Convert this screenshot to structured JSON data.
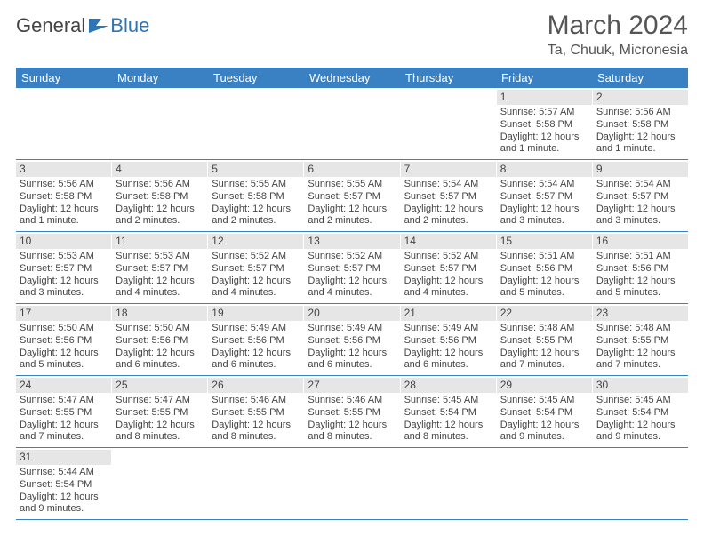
{
  "logo": {
    "text1": "General",
    "text2": "Blue"
  },
  "title": "March 2024",
  "location": "Ta, Chuuk, Micronesia",
  "colors": {
    "header_bg": "#3a81c4",
    "header_text": "#ffffff",
    "daynum_bg": "#e6e6e6",
    "row_border": "#3a81c4",
    "body_text": "#444444",
    "accent": "#2e75b6"
  },
  "daysOfWeek": [
    "Sunday",
    "Monday",
    "Tuesday",
    "Wednesday",
    "Thursday",
    "Friday",
    "Saturday"
  ],
  "weeks": [
    [
      {
        "n": "",
        "sr": "",
        "ss": "",
        "dl": ""
      },
      {
        "n": "",
        "sr": "",
        "ss": "",
        "dl": ""
      },
      {
        "n": "",
        "sr": "",
        "ss": "",
        "dl": ""
      },
      {
        "n": "",
        "sr": "",
        "ss": "",
        "dl": ""
      },
      {
        "n": "",
        "sr": "",
        "ss": "",
        "dl": ""
      },
      {
        "n": "1",
        "sr": "Sunrise: 5:57 AM",
        "ss": "Sunset: 5:58 PM",
        "dl": "Daylight: 12 hours and 1 minute."
      },
      {
        "n": "2",
        "sr": "Sunrise: 5:56 AM",
        "ss": "Sunset: 5:58 PM",
        "dl": "Daylight: 12 hours and 1 minute."
      }
    ],
    [
      {
        "n": "3",
        "sr": "Sunrise: 5:56 AM",
        "ss": "Sunset: 5:58 PM",
        "dl": "Daylight: 12 hours and 1 minute."
      },
      {
        "n": "4",
        "sr": "Sunrise: 5:56 AM",
        "ss": "Sunset: 5:58 PM",
        "dl": "Daylight: 12 hours and 2 minutes."
      },
      {
        "n": "5",
        "sr": "Sunrise: 5:55 AM",
        "ss": "Sunset: 5:58 PM",
        "dl": "Daylight: 12 hours and 2 minutes."
      },
      {
        "n": "6",
        "sr": "Sunrise: 5:55 AM",
        "ss": "Sunset: 5:57 PM",
        "dl": "Daylight: 12 hours and 2 minutes."
      },
      {
        "n": "7",
        "sr": "Sunrise: 5:54 AM",
        "ss": "Sunset: 5:57 PM",
        "dl": "Daylight: 12 hours and 2 minutes."
      },
      {
        "n": "8",
        "sr": "Sunrise: 5:54 AM",
        "ss": "Sunset: 5:57 PM",
        "dl": "Daylight: 12 hours and 3 minutes."
      },
      {
        "n": "9",
        "sr": "Sunrise: 5:54 AM",
        "ss": "Sunset: 5:57 PM",
        "dl": "Daylight: 12 hours and 3 minutes."
      }
    ],
    [
      {
        "n": "10",
        "sr": "Sunrise: 5:53 AM",
        "ss": "Sunset: 5:57 PM",
        "dl": "Daylight: 12 hours and 3 minutes."
      },
      {
        "n": "11",
        "sr": "Sunrise: 5:53 AM",
        "ss": "Sunset: 5:57 PM",
        "dl": "Daylight: 12 hours and 4 minutes."
      },
      {
        "n": "12",
        "sr": "Sunrise: 5:52 AM",
        "ss": "Sunset: 5:57 PM",
        "dl": "Daylight: 12 hours and 4 minutes."
      },
      {
        "n": "13",
        "sr": "Sunrise: 5:52 AM",
        "ss": "Sunset: 5:57 PM",
        "dl": "Daylight: 12 hours and 4 minutes."
      },
      {
        "n": "14",
        "sr": "Sunrise: 5:52 AM",
        "ss": "Sunset: 5:57 PM",
        "dl": "Daylight: 12 hours and 4 minutes."
      },
      {
        "n": "15",
        "sr": "Sunrise: 5:51 AM",
        "ss": "Sunset: 5:56 PM",
        "dl": "Daylight: 12 hours and 5 minutes."
      },
      {
        "n": "16",
        "sr": "Sunrise: 5:51 AM",
        "ss": "Sunset: 5:56 PM",
        "dl": "Daylight: 12 hours and 5 minutes."
      }
    ],
    [
      {
        "n": "17",
        "sr": "Sunrise: 5:50 AM",
        "ss": "Sunset: 5:56 PM",
        "dl": "Daylight: 12 hours and 5 minutes."
      },
      {
        "n": "18",
        "sr": "Sunrise: 5:50 AM",
        "ss": "Sunset: 5:56 PM",
        "dl": "Daylight: 12 hours and 6 minutes."
      },
      {
        "n": "19",
        "sr": "Sunrise: 5:49 AM",
        "ss": "Sunset: 5:56 PM",
        "dl": "Daylight: 12 hours and 6 minutes."
      },
      {
        "n": "20",
        "sr": "Sunrise: 5:49 AM",
        "ss": "Sunset: 5:56 PM",
        "dl": "Daylight: 12 hours and 6 minutes."
      },
      {
        "n": "21",
        "sr": "Sunrise: 5:49 AM",
        "ss": "Sunset: 5:56 PM",
        "dl": "Daylight: 12 hours and 6 minutes."
      },
      {
        "n": "22",
        "sr": "Sunrise: 5:48 AM",
        "ss": "Sunset: 5:55 PM",
        "dl": "Daylight: 12 hours and 7 minutes."
      },
      {
        "n": "23",
        "sr": "Sunrise: 5:48 AM",
        "ss": "Sunset: 5:55 PM",
        "dl": "Daylight: 12 hours and 7 minutes."
      }
    ],
    [
      {
        "n": "24",
        "sr": "Sunrise: 5:47 AM",
        "ss": "Sunset: 5:55 PM",
        "dl": "Daylight: 12 hours and 7 minutes."
      },
      {
        "n": "25",
        "sr": "Sunrise: 5:47 AM",
        "ss": "Sunset: 5:55 PM",
        "dl": "Daylight: 12 hours and 8 minutes."
      },
      {
        "n": "26",
        "sr": "Sunrise: 5:46 AM",
        "ss": "Sunset: 5:55 PM",
        "dl": "Daylight: 12 hours and 8 minutes."
      },
      {
        "n": "27",
        "sr": "Sunrise: 5:46 AM",
        "ss": "Sunset: 5:55 PM",
        "dl": "Daylight: 12 hours and 8 minutes."
      },
      {
        "n": "28",
        "sr": "Sunrise: 5:45 AM",
        "ss": "Sunset: 5:54 PM",
        "dl": "Daylight: 12 hours and 8 minutes."
      },
      {
        "n": "29",
        "sr": "Sunrise: 5:45 AM",
        "ss": "Sunset: 5:54 PM",
        "dl": "Daylight: 12 hours and 9 minutes."
      },
      {
        "n": "30",
        "sr": "Sunrise: 5:45 AM",
        "ss": "Sunset: 5:54 PM",
        "dl": "Daylight: 12 hours and 9 minutes."
      }
    ],
    [
      {
        "n": "31",
        "sr": "Sunrise: 5:44 AM",
        "ss": "Sunset: 5:54 PM",
        "dl": "Daylight: 12 hours and 9 minutes."
      },
      {
        "n": "",
        "sr": "",
        "ss": "",
        "dl": ""
      },
      {
        "n": "",
        "sr": "",
        "ss": "",
        "dl": ""
      },
      {
        "n": "",
        "sr": "",
        "ss": "",
        "dl": ""
      },
      {
        "n": "",
        "sr": "",
        "ss": "",
        "dl": ""
      },
      {
        "n": "",
        "sr": "",
        "ss": "",
        "dl": ""
      },
      {
        "n": "",
        "sr": "",
        "ss": "",
        "dl": ""
      }
    ]
  ]
}
